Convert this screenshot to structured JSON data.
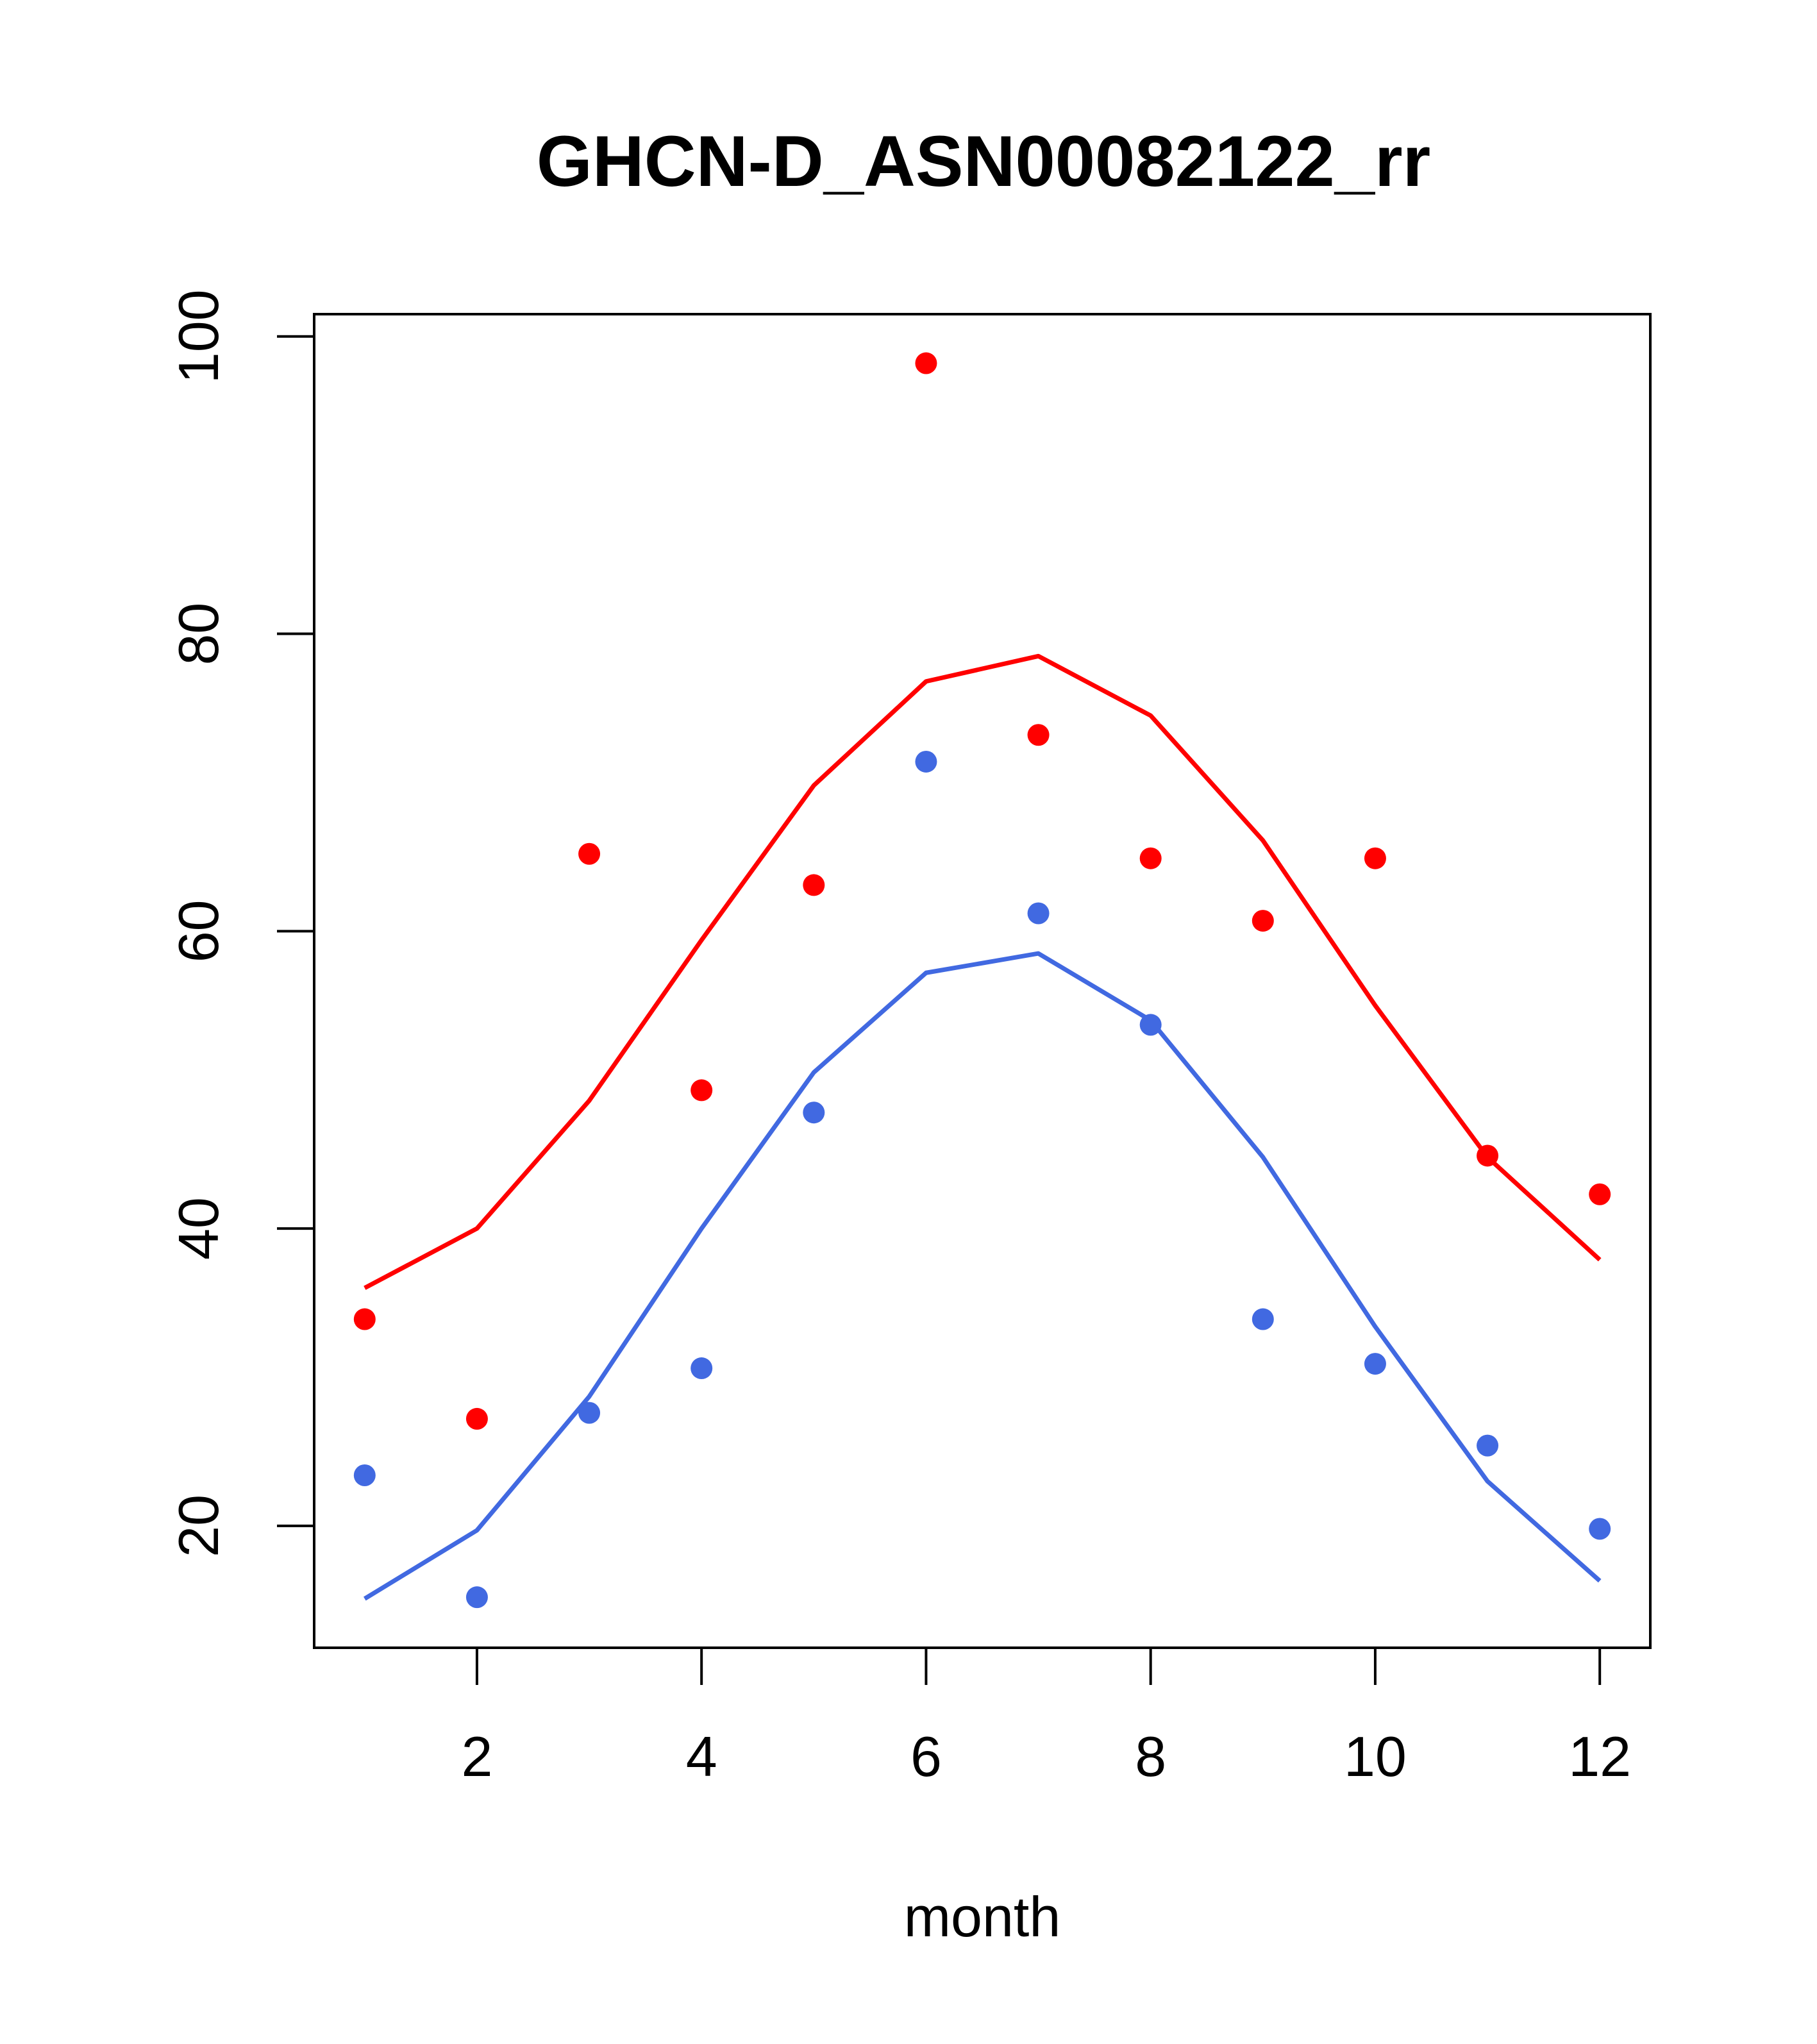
{
  "chart_data": {
    "type": "line",
    "title": "GHCN-D_ASN00082122_rr",
    "xlabel": "month",
    "ylabel": "",
    "xlim": [
      0.55,
      12.45
    ],
    "ylim": [
      11.8,
      101.5
    ],
    "xticks": [
      2,
      4,
      6,
      8,
      10,
      12
    ],
    "yticks": [
      20,
      40,
      60,
      80,
      100
    ],
    "grid": false,
    "x": [
      1,
      2,
      3,
      4,
      5,
      6,
      7,
      8,
      9,
      10,
      11,
      12
    ],
    "series": [
      {
        "color": "#FF0000",
        "style": "line",
        "values": [
          36.0,
          40.0,
          48.6,
          59.4,
          69.8,
          76.8,
          78.5,
          74.5,
          66.1,
          55.0,
          44.8,
          37.9
        ]
      },
      {
        "color": "#FF0000",
        "style": "points",
        "values": [
          33.9,
          27.2,
          65.2,
          49.3,
          63.1,
          98.2,
          73.2,
          64.9,
          60.7,
          64.9,
          44.9,
          42.3
        ]
      },
      {
        "color": "#4169E1",
        "style": "line",
        "values": [
          15.1,
          19.7,
          28.7,
          40.0,
          50.5,
          57.2,
          58.5,
          54.0,
          44.8,
          33.4,
          23.0,
          16.3
        ]
      },
      {
        "color": "#4169E1",
        "style": "points",
        "values": [
          23.4,
          15.2,
          27.6,
          30.6,
          47.8,
          71.4,
          61.2,
          53.7,
          33.9,
          30.9,
          25.4,
          19.8
        ]
      }
    ]
  }
}
